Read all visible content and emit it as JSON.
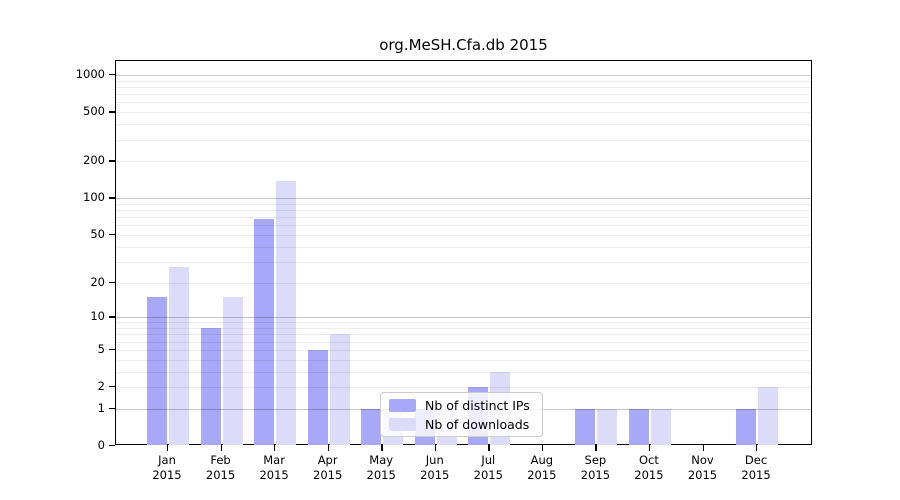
{
  "title": "org.MeSH.Cfa.db 2015",
  "legend": {
    "items": [
      {
        "label": "Nb of distinct IPs",
        "color": "#a8a8f8"
      },
      {
        "label": "Nb of downloads",
        "color": "#dcdcfa"
      }
    ]
  },
  "chart_data": {
    "type": "bar",
    "title": "org.MeSH.Cfa.db 2015",
    "categories": [
      "Jan",
      "Feb",
      "Mar",
      "Apr",
      "May",
      "Jun",
      "Jul",
      "Aug",
      "Sep",
      "Oct",
      "Nov",
      "Dec"
    ],
    "x_tick_second_line": "2015",
    "series": [
      {
        "name": "Nb of distinct IPs",
        "color": "#a8a8f8",
        "values": [
          15,
          8,
          68,
          5,
          1,
          1,
          2,
          0,
          1,
          1,
          0,
          1
        ]
      },
      {
        "name": "Nb of downloads",
        "color": "#dcdcfa",
        "values": [
          27,
          15,
          138,
          7,
          1,
          1,
          3,
          0,
          1,
          1,
          0,
          2
        ]
      }
    ],
    "y_axis": {
      "scale": "log10(1+value)",
      "ticks": [
        0,
        1,
        2,
        5,
        10,
        20,
        50,
        100,
        200,
        500,
        1000
      ],
      "major_gridlines": [
        1,
        10,
        100,
        1000
      ]
    },
    "ylim": [
      0,
      1300
    ],
    "grid": "horizontal",
    "legend_position": "inside-bottom-center",
    "colors": {
      "bar_distinct_ips": "#a8a8f8",
      "bar_downloads": "#dcdcfa",
      "minor_grid": "rgba(0,0,0,0.075)",
      "major_grid": "rgba(0,0,0,0.22)",
      "axis": "#000000"
    }
  }
}
